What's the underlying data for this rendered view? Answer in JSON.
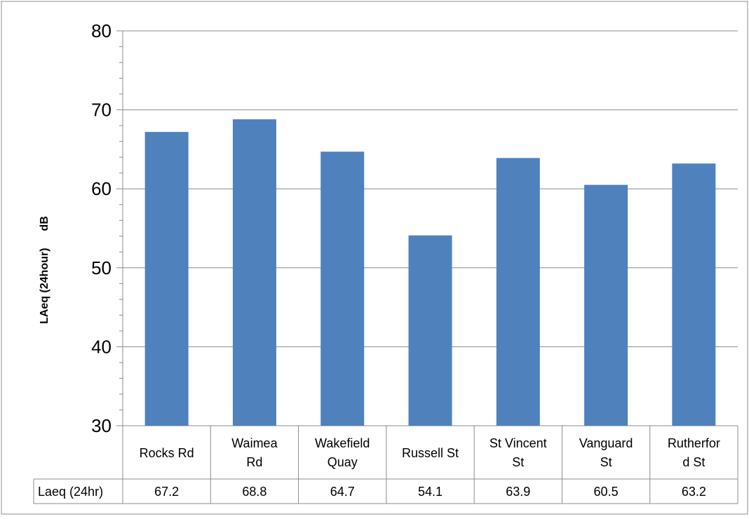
{
  "chart_data": {
    "type": "bar",
    "title": "",
    "xlabel": "",
    "ylabel": "LAeq (24hour)",
    "ylabel_unit": "dB",
    "ylim": [
      30,
      80
    ],
    "y_major_ticks": [
      30,
      40,
      50,
      60,
      70,
      80
    ],
    "y_minor_step": 2,
    "grid": true,
    "legend": "none",
    "categories": [
      [
        "Rocks Rd"
      ],
      [
        "Waimea",
        "Rd"
      ],
      [
        "Wakefield",
        "Quay"
      ],
      [
        "Russell St"
      ],
      [
        "St Vincent",
        "St"
      ],
      [
        "Vanguard",
        "St"
      ],
      [
        "Rutherfor",
        "d St"
      ]
    ],
    "series": [
      {
        "name": "Laeq (24hr)",
        "color": "#4f81bd",
        "values": [
          67.2,
          68.8,
          64.7,
          54.1,
          63.9,
          60.5,
          63.2
        ]
      }
    ],
    "data_table": {
      "row_label": "Laeq (24hr)",
      "values": [
        "67.2",
        "68.8",
        "64.7",
        "54.1",
        "63.9",
        "60.5",
        "63.2"
      ]
    }
  }
}
